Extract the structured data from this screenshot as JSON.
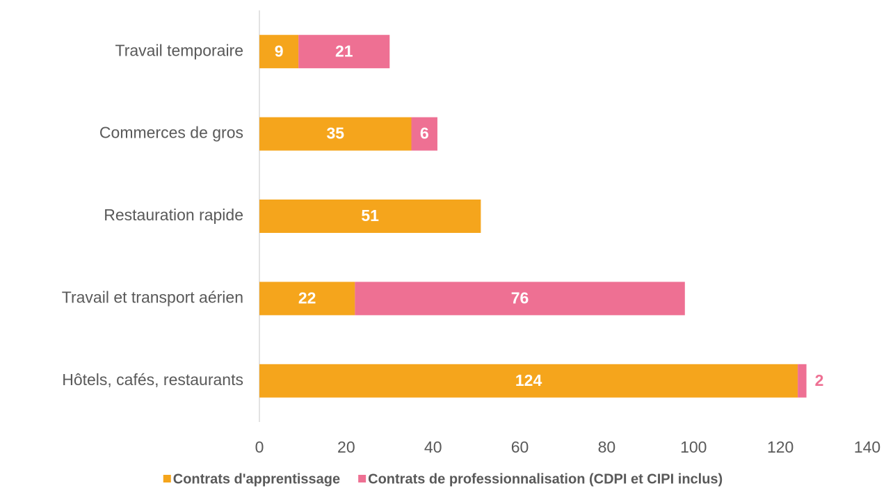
{
  "chart_data": {
    "type": "stacked-barh",
    "categories": [
      "Travail temporaire",
      "Commerces de gros",
      "Restauration rapide",
      "Travail et transport aérien",
      "Hôtels, cafés, restaurants"
    ],
    "series": [
      {
        "name": "Contrats d'apprentissage",
        "color": "#F5A51C",
        "values": [
          9,
          35,
          51,
          22,
          124
        ]
      },
      {
        "name": "Contrats de professionnalisation (CDPI et CIPI inclus)",
        "color": "#EE7093",
        "values": [
          21,
          6,
          null,
          76,
          2
        ]
      }
    ],
    "xlim": [
      0,
      140
    ],
    "xticks": [
      0,
      20,
      40,
      60,
      80,
      100,
      120,
      140
    ],
    "grid": false,
    "legend": "bottom"
  }
}
